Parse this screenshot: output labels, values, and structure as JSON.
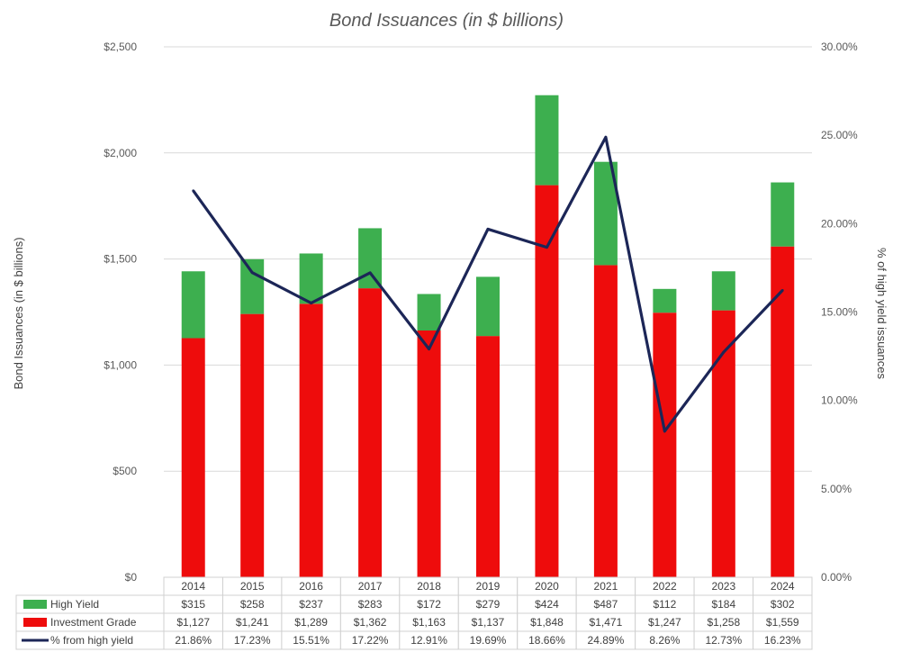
{
  "chart_data": {
    "type": "bar",
    "title": "Bond Issuances (in $ billions)",
    "ylabel": "Bond Issuances (in $ billions)",
    "y2label": "% of high yield issuances",
    "ylim": [
      0,
      2500
    ],
    "y2lim": [
      0,
      30
    ],
    "yticks": [
      "$0",
      "$500",
      "$1,000",
      "$1,500",
      "$2,000",
      "$2,500"
    ],
    "y2ticks": [
      "0.00%",
      "5.00%",
      "10.00%",
      "15.00%",
      "20.00%",
      "25.00%",
      "30.00%"
    ],
    "grid": true,
    "categories": [
      "2014",
      "2015",
      "2016",
      "2017",
      "2018",
      "2019",
      "2020",
      "2021",
      "2022",
      "2023",
      "2024"
    ],
    "series": [
      {
        "name": "High Yield",
        "type": "stacked-bar",
        "color": "#3daf4f",
        "values": [
          315,
          258,
          237,
          283,
          172,
          279,
          424,
          487,
          112,
          184,
          302
        ],
        "labels": [
          "$315",
          "$258",
          "$237",
          "$283",
          "$172",
          "$279",
          "$424",
          "$487",
          "$112",
          "$184",
          "$302"
        ]
      },
      {
        "name": "Investment Grade",
        "type": "stacked-bar",
        "color": "#ee0c0c",
        "values": [
          1127,
          1241,
          1289,
          1362,
          1163,
          1137,
          1848,
          1471,
          1247,
          1258,
          1559
        ],
        "labels": [
          "$1,127",
          "$1,241",
          "$1,289",
          "$1,362",
          "$1,163",
          "$1,137",
          "$1,848",
          "$1,471",
          "$1,247",
          "$1,258",
          "$1,559"
        ]
      },
      {
        "name": "% from high yield",
        "type": "line",
        "axis": "right",
        "color": "#1c2657",
        "values": [
          21.86,
          17.23,
          15.51,
          17.22,
          12.91,
          19.69,
          18.66,
          24.89,
          8.26,
          12.73,
          16.23
        ],
        "labels": [
          "21.86%",
          "17.23%",
          "15.51%",
          "17.22%",
          "12.91%",
          "19.69%",
          "18.66%",
          "24.89%",
          "8.26%",
          "12.73%",
          "16.23%"
        ]
      }
    ]
  }
}
